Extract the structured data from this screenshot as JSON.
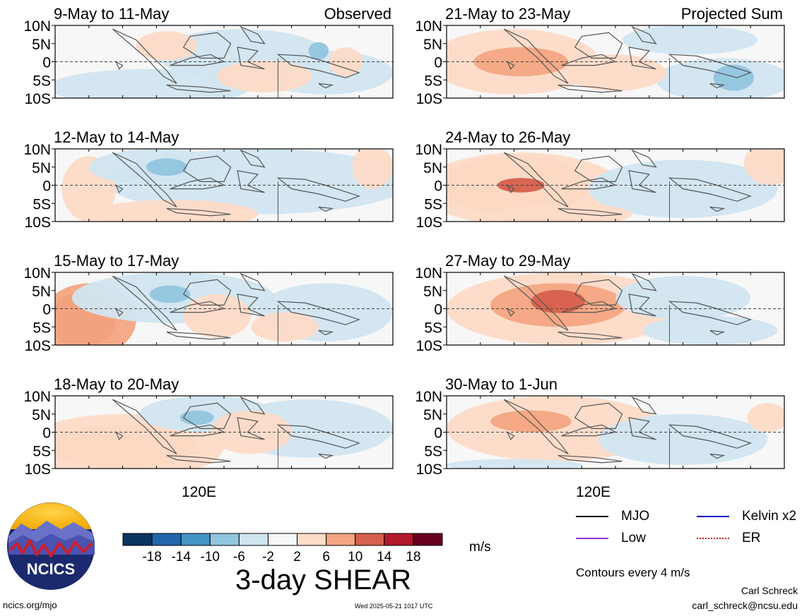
{
  "observed_label": "Observed",
  "projected_label": "Projected Sum",
  "lat_labels": [
    "10N",
    "5N",
    "0",
    "5S",
    "10S"
  ],
  "lon_label": "120E",
  "panels_left": [
    {
      "title": "9-May to 11-May"
    },
    {
      "title": "12-May to 14-May"
    },
    {
      "title": "15-May to 17-May"
    },
    {
      "title": "18-May to 20-May"
    }
  ],
  "panels_right": [
    {
      "title": "21-May to 23-May"
    },
    {
      "title": "24-May to 26-May"
    },
    {
      "title": "27-May to 29-May"
    },
    {
      "title": "30-May to 1-Jun"
    }
  ],
  "colorbar": {
    "title": "3-day SHEAR",
    "units": "m/s",
    "tick_labels": [
      "-18",
      "-14",
      "-10",
      "-6",
      "-2",
      "2",
      "6",
      "10",
      "14",
      "18"
    ],
    "colors": [
      "#0b3561",
      "#2166ac",
      "#4393c3",
      "#92c5de",
      "#d1e5f0",
      "#f7f7f7",
      "#fddbc7",
      "#f4a582",
      "#d6604d",
      "#b2182b",
      "#67001f"
    ]
  },
  "legend": [
    {
      "label": "MJO",
      "color": "#000000"
    },
    {
      "label": "Kelvin x2",
      "color": "#0000cc"
    },
    {
      "label": "Low",
      "color": "#9933cc"
    },
    {
      "label": "ER",
      "color": "#cc0000"
    }
  ],
  "contour_note": "Contours every 4 m/s",
  "logo_text": "NCICS",
  "footer": {
    "url": "ncics.org/mjo",
    "timestamp": "Wed 2025-05-21 1017 UTC",
    "author": "Carl Schreck",
    "email": "carl_schreck@ncsu.edu"
  }
}
